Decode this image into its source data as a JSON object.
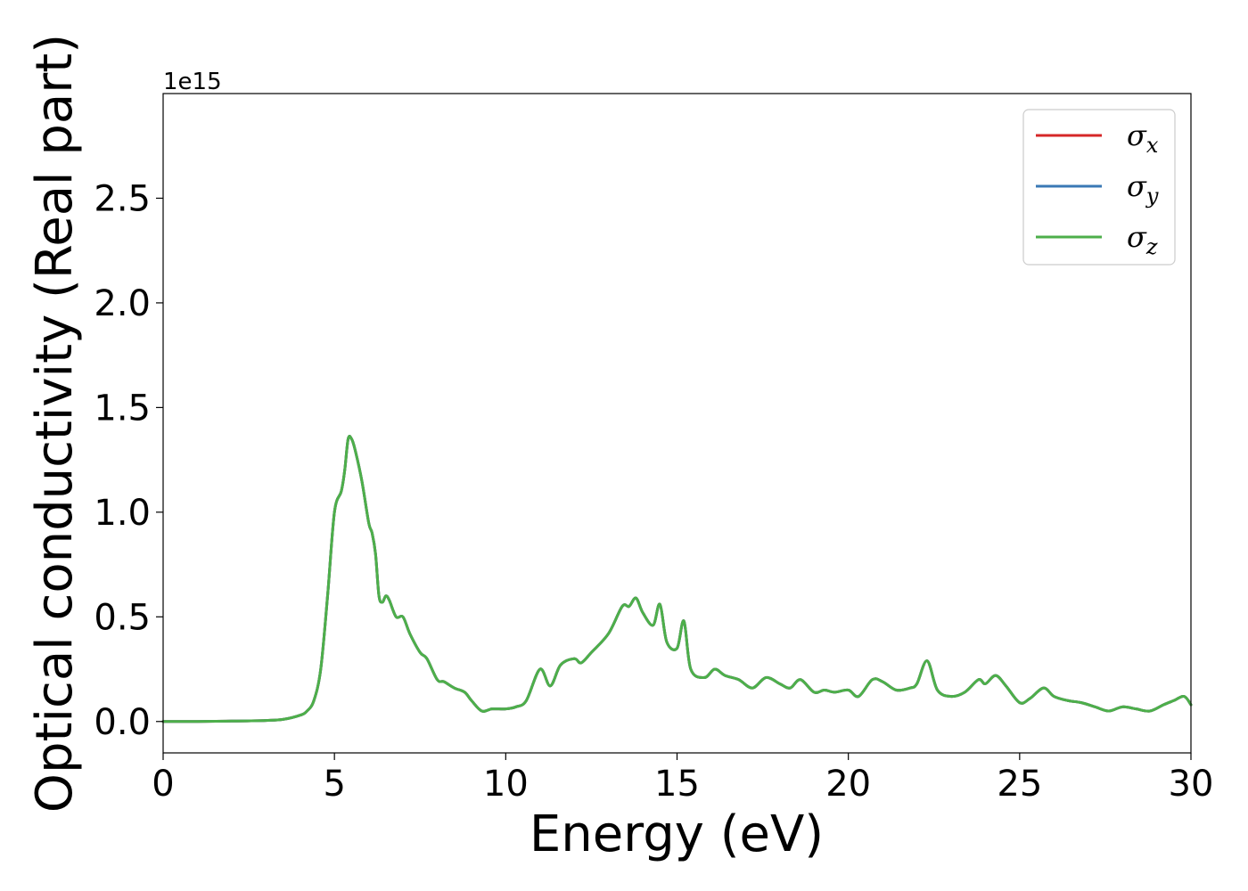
{
  "chart_data": {
    "type": "line",
    "xlabel": "Energy (eV)",
    "ylabel": "Optical conductivity (Real part)",
    "y_offset_label": "1e15",
    "xlim": [
      0,
      30
    ],
    "ylim": [
      -0.15,
      3.0
    ],
    "x_ticks": [
      0,
      5,
      10,
      15,
      20,
      25,
      30
    ],
    "x_tick_labels": [
      "0",
      "5",
      "10",
      "15",
      "20",
      "25",
      "30"
    ],
    "y_ticks": [
      0.0,
      0.5,
      1.0,
      1.5,
      2.0,
      2.5
    ],
    "y_tick_labels": [
      "0.0",
      "0.5",
      "1.0",
      "1.5",
      "2.0",
      "2.5"
    ],
    "grid": false,
    "legend_position": "top-right",
    "series": [
      {
        "name": "σx",
        "symbol": "σ",
        "subscript": "x",
        "color": "#d62728"
      },
      {
        "name": "σy",
        "symbol": "σ",
        "subscript": "y",
        "color": "#3a78b5"
      },
      {
        "name": "σz",
        "symbol": "σ",
        "subscript": "z",
        "color": "#4daf4a"
      }
    ],
    "x": [
      0,
      1,
      2,
      3,
      3.5,
      4,
      4.2,
      4.4,
      4.6,
      4.8,
      5.0,
      5.2,
      5.3,
      5.4,
      5.5,
      5.6,
      5.8,
      6.0,
      6.1,
      6.2,
      6.3,
      6.4,
      6.5,
      6.6,
      6.8,
      7.0,
      7.2,
      7.5,
      7.7,
      8.0,
      8.2,
      8.5,
      8.8,
      9.0,
      9.3,
      9.6,
      10.0,
      10.3,
      10.6,
      11.0,
      11.3,
      11.6,
      12.0,
      12.2,
      12.5,
      13.0,
      13.4,
      13.6,
      13.8,
      14.0,
      14.3,
      14.5,
      14.7,
      15.0,
      15.2,
      15.4,
      15.8,
      16.1,
      16.4,
      16.8,
      17.2,
      17.6,
      18.0,
      18.3,
      18.6,
      19.0,
      19.3,
      19.6,
      20.0,
      20.3,
      20.7,
      21.0,
      21.4,
      21.8,
      22.0,
      22.3,
      22.6,
      23.0,
      23.4,
      23.8,
      24.0,
      24.3,
      24.6,
      25.0,
      25.3,
      25.7,
      26.0,
      26.4,
      26.8,
      27.2,
      27.6,
      28.0,
      28.4,
      28.8,
      29.2,
      29.5,
      29.8,
      30.0
    ],
    "y": [
      0.0,
      0.0,
      0.002,
      0.005,
      0.01,
      0.03,
      0.05,
      0.1,
      0.25,
      0.6,
      1.0,
      1.1,
      1.2,
      1.35,
      1.35,
      1.3,
      1.15,
      0.95,
      0.9,
      0.8,
      0.6,
      0.57,
      0.6,
      0.58,
      0.5,
      0.5,
      0.42,
      0.33,
      0.3,
      0.2,
      0.19,
      0.16,
      0.14,
      0.1,
      0.05,
      0.06,
      0.06,
      0.07,
      0.1,
      0.25,
      0.17,
      0.27,
      0.3,
      0.28,
      0.33,
      0.42,
      0.55,
      0.55,
      0.59,
      0.52,
      0.46,
      0.56,
      0.38,
      0.35,
      0.48,
      0.25,
      0.21,
      0.25,
      0.22,
      0.2,
      0.16,
      0.21,
      0.18,
      0.16,
      0.2,
      0.14,
      0.15,
      0.14,
      0.15,
      0.12,
      0.2,
      0.19,
      0.15,
      0.16,
      0.18,
      0.29,
      0.15,
      0.12,
      0.14,
      0.2,
      0.18,
      0.22,
      0.17,
      0.09,
      0.11,
      0.16,
      0.12,
      0.1,
      0.09,
      0.07,
      0.05,
      0.07,
      0.06,
      0.05,
      0.08,
      0.1,
      0.12,
      0.08
    ]
  }
}
